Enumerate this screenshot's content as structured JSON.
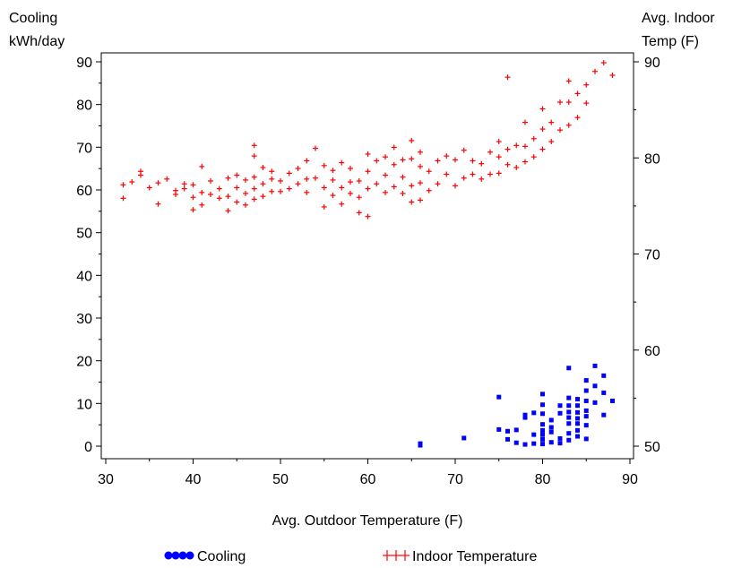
{
  "chart_data": {
    "type": "scatter",
    "title": "",
    "xlabel": "Avg. Outdoor Temperature (F)",
    "ylabel_left": [
      "Cooling",
      "kWh/day"
    ],
    "ylabel_right": [
      "Avg. Indoor",
      "Temp (F)"
    ],
    "xlim": [
      30,
      90
    ],
    "ylim_left": [
      0,
      90
    ],
    "ylim_right": [
      50,
      90
    ],
    "xticks": [
      30,
      40,
      50,
      60,
      70,
      80,
      90
    ],
    "yticks_left": [
      0,
      10,
      20,
      30,
      40,
      50,
      60,
      70,
      80,
      90
    ],
    "yticks_right": [
      50,
      60,
      70,
      80,
      90
    ],
    "grid": false,
    "legend_position": "bottom",
    "series": [
      {
        "name": "Cooling",
        "axis": "left",
        "marker": "dot",
        "color": "#0000ff",
        "points": [
          [
            66,
            0.2
          ],
          [
            66,
            0.6
          ],
          [
            71,
            1.9
          ],
          [
            75,
            11.5
          ],
          [
            75,
            3.9
          ],
          [
            76,
            1.6
          ],
          [
            76,
            3.5
          ],
          [
            77,
            0.8
          ],
          [
            77,
            3.8
          ],
          [
            78,
            0.4
          ],
          [
            78,
            6.7
          ],
          [
            78,
            7.3
          ],
          [
            79,
            0.6
          ],
          [
            79,
            2.7
          ],
          [
            79,
            7.8
          ],
          [
            80,
            0.5
          ],
          [
            80,
            1.6
          ],
          [
            80,
            2.7
          ],
          [
            80,
            3.7
          ],
          [
            80,
            5.1
          ],
          [
            80,
            7.6
          ],
          [
            80,
            9.7
          ],
          [
            80,
            12.2
          ],
          [
            81,
            0.9
          ],
          [
            81,
            3.3
          ],
          [
            81,
            4.4
          ],
          [
            81,
            6.1
          ],
          [
            82,
            0.7
          ],
          [
            82,
            1.8
          ],
          [
            82,
            7.7
          ],
          [
            82,
            9.5
          ],
          [
            83,
            1.4
          ],
          [
            83,
            3.0
          ],
          [
            83,
            5.3
          ],
          [
            83,
            6.7
          ],
          [
            83,
            8.0
          ],
          [
            83,
            9.5
          ],
          [
            83,
            11.3
          ],
          [
            83,
            18.3
          ],
          [
            84,
            2.3
          ],
          [
            84,
            3.7
          ],
          [
            84,
            5.3
          ],
          [
            84,
            6.5
          ],
          [
            84,
            7.9
          ],
          [
            84,
            9.5
          ],
          [
            84,
            11.0
          ],
          [
            85,
            1.7
          ],
          [
            85,
            4.9
          ],
          [
            85,
            7.0
          ],
          [
            85,
            8.3
          ],
          [
            85,
            10.6
          ],
          [
            85,
            13.0
          ],
          [
            85,
            15.4
          ],
          [
            86,
            10.2
          ],
          [
            86,
            14.1
          ],
          [
            86,
            18.8
          ],
          [
            87,
            7.3
          ],
          [
            87,
            12.5
          ],
          [
            87,
            16.5
          ],
          [
            88,
            10.6
          ]
        ]
      },
      {
        "name": "Indoor Temperature",
        "axis": "right",
        "marker": "plus",
        "color": "#ff0000",
        "points": [
          [
            32,
            75.8
          ],
          [
            32,
            77.2
          ],
          [
            33,
            77.5
          ],
          [
            34,
            78.2
          ],
          [
            34,
            78.6
          ],
          [
            35,
            76.9
          ],
          [
            36,
            75.2
          ],
          [
            36,
            77.4
          ],
          [
            37,
            77.8
          ],
          [
            38,
            76.6
          ],
          [
            38,
            76.2
          ],
          [
            39,
            76.8
          ],
          [
            39,
            77.3
          ],
          [
            40,
            74.6
          ],
          [
            40,
            75.9
          ],
          [
            40,
            77.2
          ],
          [
            41,
            75.1
          ],
          [
            41,
            76.4
          ],
          [
            41,
            79.1
          ],
          [
            42,
            76.2
          ],
          [
            42,
            77.6
          ],
          [
            43,
            75.8
          ],
          [
            43,
            76.8
          ],
          [
            44,
            74.5
          ],
          [
            44,
            76.0
          ],
          [
            44,
            77.9
          ],
          [
            45,
            75.4
          ],
          [
            45,
            76.9
          ],
          [
            45,
            78.2
          ],
          [
            46,
            75.1
          ],
          [
            46,
            76.3
          ],
          [
            46,
            77.7
          ],
          [
            47,
            75.7
          ],
          [
            47,
            76.8
          ],
          [
            47,
            78.0
          ],
          [
            47,
            80.2
          ],
          [
            47,
            81.3
          ],
          [
            48,
            76.0
          ],
          [
            48,
            77.3
          ],
          [
            48,
            79.0
          ],
          [
            49,
            76.5
          ],
          [
            49,
            77.8
          ],
          [
            49,
            78.6
          ],
          [
            50,
            76.5
          ],
          [
            50,
            77.6
          ],
          [
            51,
            76.8
          ],
          [
            51,
            78.4
          ],
          [
            52,
            77.3
          ],
          [
            52,
            78.9
          ],
          [
            53,
            76.4
          ],
          [
            53,
            77.8
          ],
          [
            53,
            79.7
          ],
          [
            54,
            77.9
          ],
          [
            54,
            81.0
          ],
          [
            55,
            74.9
          ],
          [
            55,
            76.9
          ],
          [
            55,
            79.2
          ],
          [
            56,
            76.1
          ],
          [
            56,
            77.7
          ],
          [
            56,
            78.7
          ],
          [
            57,
            75.2
          ],
          [
            57,
            76.9
          ],
          [
            57,
            79.5
          ],
          [
            58,
            76.3
          ],
          [
            58,
            77.5
          ],
          [
            58,
            78.9
          ],
          [
            59,
            74.3
          ],
          [
            59,
            75.9
          ],
          [
            59,
            77.6
          ],
          [
            60,
            73.9
          ],
          [
            60,
            76.8
          ],
          [
            60,
            78.6
          ],
          [
            60,
            80.4
          ],
          [
            61,
            77.3
          ],
          [
            61,
            79.7
          ],
          [
            62,
            76.4
          ],
          [
            62,
            78.2
          ],
          [
            62,
            80.1
          ],
          [
            63,
            77.0
          ],
          [
            63,
            79.3
          ],
          [
            63,
            81.1
          ],
          [
            64,
            76.3
          ],
          [
            64,
            78.0
          ],
          [
            64,
            79.8
          ],
          [
            65,
            75.4
          ],
          [
            65,
            77.1
          ],
          [
            65,
            79.9
          ],
          [
            65,
            81.8
          ],
          [
            66,
            75.6
          ],
          [
            66,
            77.4
          ],
          [
            66,
            79.1
          ],
          [
            66,
            80.6
          ],
          [
            67,
            76.6
          ],
          [
            67,
            78.6
          ],
          [
            68,
            77.3
          ],
          [
            68,
            79.7
          ],
          [
            69,
            78.3
          ],
          [
            69,
            80.2
          ],
          [
            70,
            77.1
          ],
          [
            70,
            79.8
          ],
          [
            71,
            77.9
          ],
          [
            71,
            80.8
          ],
          [
            72,
            78.3
          ],
          [
            72,
            79.7
          ],
          [
            73,
            77.8
          ],
          [
            73,
            79.4
          ],
          [
            74,
            78.3
          ],
          [
            74,
            80.6
          ],
          [
            75,
            78.4
          ],
          [
            75,
            80.1
          ],
          [
            75,
            81.7
          ],
          [
            76,
            79.3
          ],
          [
            76,
            80.9
          ],
          [
            76,
            88.4
          ],
          [
            77,
            79.0
          ],
          [
            77,
            81.3
          ],
          [
            78,
            79.6
          ],
          [
            78,
            81.2
          ],
          [
            78,
            83.7
          ],
          [
            79,
            80.1
          ],
          [
            79,
            82.0
          ],
          [
            80,
            80.9
          ],
          [
            80,
            83.0
          ],
          [
            80,
            85.1
          ],
          [
            81,
            81.7
          ],
          [
            81,
            83.7
          ],
          [
            82,
            82.9
          ],
          [
            82,
            85.8
          ],
          [
            83,
            83.4
          ],
          [
            83,
            85.8
          ],
          [
            83,
            88.0
          ],
          [
            84,
            84.2
          ],
          [
            84,
            86.7
          ],
          [
            85,
            85.7
          ],
          [
            85,
            87.6
          ],
          [
            86,
            89.0
          ],
          [
            87,
            89.9
          ],
          [
            88,
            88.6
          ]
        ]
      }
    ]
  }
}
